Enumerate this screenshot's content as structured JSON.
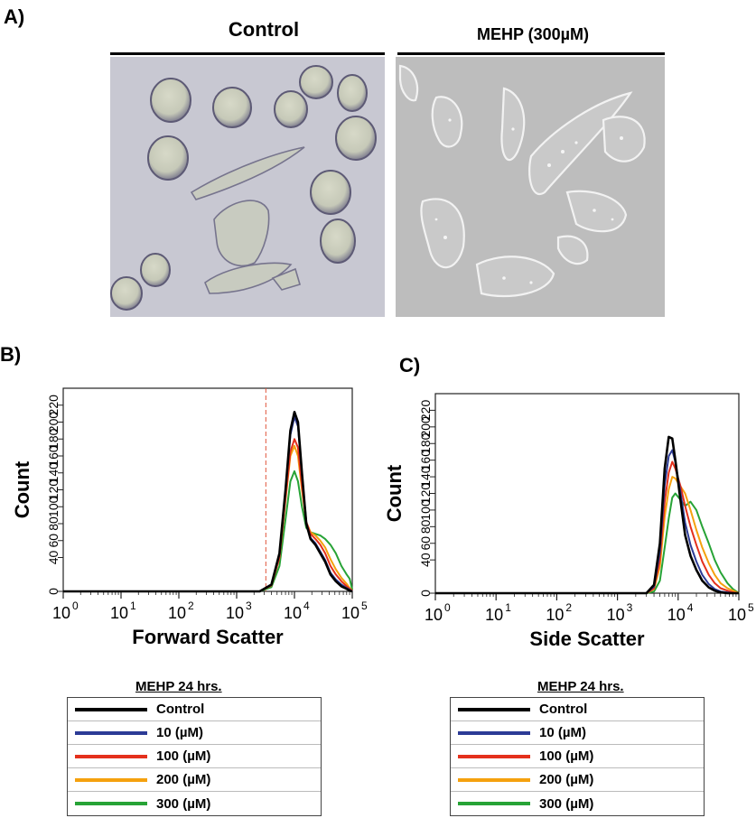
{
  "panels": {
    "a": {
      "letter": "A)",
      "control_title": "Control",
      "mehp_title": "MEHP (300µM)"
    },
    "b": {
      "letter": "B)"
    },
    "c": {
      "letter": "C)"
    }
  },
  "colors": {
    "Control": "#000000",
    "10 (µM)": "#2c3b96",
    "100 (µM)": "#e4301c",
    "200 (µM)": "#f5a10e",
    "300 (µM)": "#27a336",
    "gate_line": "#e0543a"
  },
  "legend": {
    "title": "MEHP 24 hrs.",
    "items": [
      {
        "label": "Control",
        "color": "#000000"
      },
      {
        "label": "10 (µM)",
        "color": "#2c3b96"
      },
      {
        "label": "100 (µM)",
        "color": "#e4301c"
      },
      {
        "label": "200 (µM)",
        "color": "#f5a10e"
      },
      {
        "label": "300 (µM)",
        "color": "#27a336"
      }
    ]
  },
  "chart_data": [
    {
      "type": "line",
      "panel": "B",
      "xlabel": "Forward Scatter",
      "ylabel": "Count",
      "x_scale": "log",
      "xlim": [
        1,
        100000
      ],
      "ylim": [
        0,
        240
      ],
      "yticks": [
        0,
        40,
        60,
        80,
        100,
        120,
        140,
        160,
        180,
        200,
        220
      ],
      "ytick_labels": [
        "0",
        "40",
        "60",
        "80",
        "100",
        "120",
        "140",
        "160",
        "180",
        "200",
        "220"
      ],
      "xticks": [
        1,
        10,
        100,
        1000,
        10000,
        100000
      ],
      "gate_x": 3200,
      "x": [
        1,
        1000,
        2500,
        4000,
        5500,
        7000,
        8500,
        10000,
        11500,
        13500,
        16000,
        19000,
        23000,
        28000,
        34000,
        42000,
        52000,
        65000,
        80000,
        90000,
        100000
      ],
      "series": [
        {
          "name": "Control",
          "values": [
            0,
            0,
            0,
            8,
            45,
            120,
            190,
            212,
            200,
            140,
            80,
            62,
            55,
            45,
            35,
            20,
            12,
            6,
            3,
            1,
            0
          ]
        },
        {
          "name": "10 (µM)",
          "values": [
            0,
            0,
            0,
            8,
            44,
            118,
            185,
            206,
            195,
            138,
            82,
            63,
            57,
            47,
            37,
            22,
            14,
            8,
            4,
            2,
            0
          ]
        },
        {
          "name": "100 (µM)",
          "values": [
            0,
            0,
            0,
            7,
            40,
            110,
            165,
            180,
            170,
            125,
            82,
            68,
            62,
            55,
            45,
            30,
            20,
            12,
            6,
            3,
            1
          ]
        },
        {
          "name": "200 (µM)",
          "values": [
            0,
            0,
            0,
            7,
            40,
            108,
            160,
            172,
            160,
            120,
            82,
            70,
            66,
            60,
            52,
            38,
            26,
            16,
            9,
            4,
            1
          ]
        },
        {
          "name": "300 (µM)",
          "values": [
            0,
            0,
            0,
            5,
            30,
            85,
            130,
            142,
            130,
            100,
            75,
            70,
            68,
            66,
            62,
            55,
            45,
            30,
            20,
            15,
            2
          ]
        }
      ]
    },
    {
      "type": "line",
      "panel": "C",
      "xlabel": "Side Scatter",
      "ylabel": "Count",
      "x_scale": "log",
      "xlim": [
        1,
        100000
      ],
      "ylim": [
        0,
        240
      ],
      "yticks": [
        0,
        40,
        60,
        80,
        100,
        120,
        140,
        160,
        180,
        200,
        220
      ],
      "ytick_labels": [
        "0",
        "40",
        "60",
        "80",
        "100",
        "120",
        "140",
        "160",
        "180",
        "200",
        "220"
      ],
      "xticks": [
        1,
        10,
        100,
        1000,
        10000,
        100000
      ],
      "x": [
        1,
        1000,
        3000,
        4000,
        5000,
        6000,
        7000,
        8000,
        9000,
        11000,
        13000,
        16000,
        20000,
        25000,
        32000,
        40000,
        50000,
        65000,
        80000,
        100000
      ],
      "series": [
        {
          "name": "Control",
          "values": [
            0,
            0,
            0,
            10,
            60,
            150,
            188,
            186,
            160,
            110,
            70,
            45,
            28,
            15,
            7,
            3,
            1,
            0,
            0,
            0
          ]
        },
        {
          "name": "10 (µM)",
          "values": [
            0,
            0,
            0,
            8,
            50,
            130,
            165,
            172,
            158,
            120,
            85,
            58,
            38,
            22,
            11,
            5,
            2,
            1,
            0,
            0
          ]
        },
        {
          "name": "100 (µM)",
          "values": [
            0,
            0,
            0,
            6,
            40,
            110,
            145,
            158,
            150,
            128,
            105,
            80,
            58,
            38,
            22,
            12,
            6,
            3,
            1,
            0
          ]
        },
        {
          "name": "200 (µM)",
          "values": [
            0,
            0,
            0,
            5,
            32,
            92,
            125,
            140,
            138,
            128,
            120,
            100,
            76,
            55,
            36,
            22,
            12,
            6,
            3,
            0
          ]
        },
        {
          "name": "300 (µM)",
          "values": [
            0,
            0,
            0,
            2,
            15,
            55,
            90,
            115,
            120,
            112,
            105,
            110,
            100,
            80,
            60,
            40,
            25,
            12,
            5,
            0
          ]
        }
      ]
    }
  ]
}
